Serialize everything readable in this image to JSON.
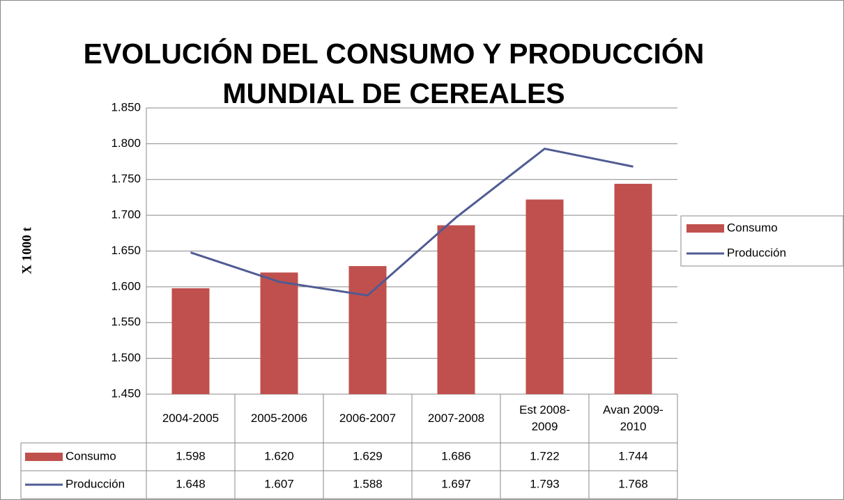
{
  "chart_data": {
    "type": "bar-line",
    "title": [
      "EVOLUCIÓN DEL CONSUMO Y PRODUCCIÓN",
      "MUNDIAL DE CEREALES"
    ],
    "y_label": "X 1000 t",
    "categories": [
      "2004-2005",
      "2005-2006",
      "2006-2007",
      "2007-2008",
      "Est 2008-2009",
      "Avan 2009-2010"
    ],
    "series": [
      {
        "name": "Consumo",
        "type": "bar",
        "color": "#c0504d",
        "values": [
          1598,
          1620,
          1629,
          1686,
          1722,
          1744
        ],
        "value_labels": [
          "1.598",
          "1.620",
          "1.629",
          "1.686",
          "1.722",
          "1.744"
        ]
      },
      {
        "name": "Producción",
        "type": "line",
        "color": "#4f5b93",
        "values": [
          1648,
          1607,
          1588,
          1697,
          1793,
          1768
        ],
        "value_labels": [
          "1.648",
          "1.607",
          "1.588",
          "1.697",
          "1.793",
          "1.768"
        ]
      }
    ],
    "ylim": [
      1450,
      1850
    ],
    "yticks": [
      {
        "value": 1450,
        "label": "1.450"
      },
      {
        "value": 1500,
        "label": "1.500"
      },
      {
        "value": 1550,
        "label": "1.550"
      },
      {
        "value": 1600,
        "label": "1.600"
      },
      {
        "value": 1650,
        "label": "1.650"
      },
      {
        "value": 1700,
        "label": "1.700"
      },
      {
        "value": 1750,
        "label": "1.750"
      },
      {
        "value": 1800,
        "label": "1.800"
      },
      {
        "value": 1850,
        "label": "1.850"
      }
    ],
    "grid": true,
    "legend": "right",
    "data_table": true
  }
}
